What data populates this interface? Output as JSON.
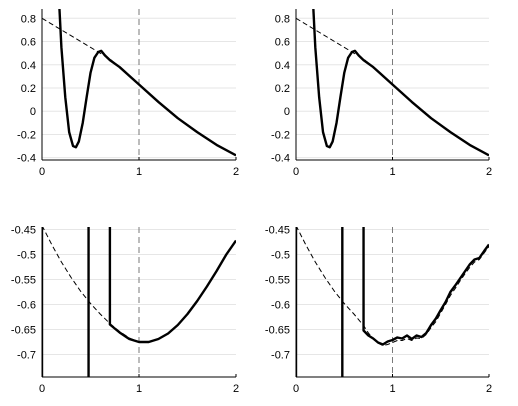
{
  "chart_data": [
    {
      "type": "line",
      "panel": "top-left",
      "xlim": [
        0,
        2
      ],
      "ylim": [
        -0.42,
        0.88
      ],
      "xticks": [
        0,
        1,
        2
      ],
      "xtick_labels": [
        "0",
        "1",
        "2"
      ],
      "yticks": [
        -0.4,
        -0.2,
        0,
        0.2,
        0.4,
        0.6,
        0.8
      ],
      "ytick_labels": [
        "-0.4",
        "-0.2",
        "0",
        "0.2",
        "0.4",
        "0.6",
        "0.8"
      ],
      "grid": "horizontal",
      "vline_x": 1,
      "series": [
        {
          "style": "solid",
          "x": [
            0.18,
            0.2,
            0.24,
            0.28,
            0.32,
            0.35,
            0.38,
            0.42,
            0.46,
            0.5,
            0.54,
            0.58,
            0.61,
            0.65,
            0.7,
            0.8,
            1.0,
            1.2,
            1.4,
            1.6,
            1.8,
            2.0
          ],
          "y": [
            0.88,
            0.55,
            0.12,
            -0.18,
            -0.3,
            -0.31,
            -0.26,
            -0.1,
            0.12,
            0.33,
            0.46,
            0.51,
            0.52,
            0.48,
            0.44,
            0.38,
            0.23,
            0.08,
            -0.06,
            -0.18,
            -0.29,
            -0.38
          ]
        },
        {
          "style": "dashed",
          "x": [
            0,
            0.2,
            0.4,
            0.6,
            0.7,
            0.8,
            1.0,
            1.2,
            1.4,
            1.6,
            1.8,
            2.0
          ],
          "y": [
            0.8,
            0.7,
            0.6,
            0.5,
            0.45,
            0.38,
            0.23,
            0.08,
            -0.06,
            -0.18,
            -0.29,
            -0.38
          ]
        }
      ]
    },
    {
      "type": "line",
      "panel": "top-right",
      "xlim": [
        0,
        2
      ],
      "ylim": [
        -0.42,
        0.88
      ],
      "xticks": [
        0,
        1,
        2
      ],
      "xtick_labels": [
        "0",
        "1",
        "2"
      ],
      "yticks": [
        -0.4,
        -0.2,
        0,
        0.2,
        0.4,
        0.6,
        0.8
      ],
      "ytick_labels": [
        "-0.4",
        "-0.2",
        "0",
        "0.2",
        "0.4",
        "0.6",
        "0.8"
      ],
      "grid": "horizontal",
      "vline_x": 1,
      "series": [
        {
          "style": "solid",
          "x": [
            0.18,
            0.2,
            0.24,
            0.28,
            0.32,
            0.35,
            0.38,
            0.42,
            0.46,
            0.5,
            0.54,
            0.58,
            0.61,
            0.65,
            0.7,
            0.8,
            1.0,
            1.2,
            1.4,
            1.6,
            1.8,
            2.0
          ],
          "y": [
            0.88,
            0.55,
            0.12,
            -0.18,
            -0.3,
            -0.31,
            -0.26,
            -0.1,
            0.12,
            0.33,
            0.46,
            0.51,
            0.52,
            0.48,
            0.44,
            0.38,
            0.23,
            0.08,
            -0.06,
            -0.18,
            -0.29,
            -0.38
          ]
        },
        {
          "style": "dashed",
          "x": [
            0,
            0.2,
            0.4,
            0.6,
            0.7,
            0.8,
            1.0,
            1.2,
            1.4,
            1.6,
            1.8,
            2.0
          ],
          "y": [
            0.8,
            0.7,
            0.6,
            0.5,
            0.45,
            0.38,
            0.23,
            0.08,
            -0.06,
            -0.18,
            -0.29,
            -0.38
          ]
        }
      ]
    },
    {
      "type": "line",
      "panel": "bottom-left",
      "xlim": [
        0,
        2
      ],
      "ylim": [
        -0.745,
        -0.445
      ],
      "xticks": [
        0,
        1,
        2
      ],
      "xtick_labels": [
        "0",
        "1",
        "2"
      ],
      "yticks": [
        -0.7,
        -0.65,
        -0.6,
        -0.55,
        -0.5,
        -0.45
      ],
      "ytick_labels": [
        "-0.7",
        "-0.65",
        "-0.6",
        "-0.55",
        "-0.5",
        "-0.45"
      ],
      "grid": "horizontal",
      "vline_x": 1,
      "series": [
        {
          "style": "solid",
          "x": [
            0.0,
            0.0
          ],
          "y": [
            -0.745,
            -0.445
          ]
        },
        {
          "style": "solid",
          "x": [
            0.48,
            0.48
          ],
          "y": [
            -0.745,
            -0.445
          ]
        },
        {
          "style": "solid",
          "x": [
            0.7,
            0.7,
            0.8,
            0.9,
            1.0,
            1.1,
            1.2,
            1.3,
            1.4,
            1.5,
            1.6,
            1.7,
            1.8,
            1.9,
            2.0
          ],
          "y": [
            -0.445,
            -0.64,
            -0.656,
            -0.669,
            -0.675,
            -0.675,
            -0.669,
            -0.658,
            -0.641,
            -0.619,
            -0.593,
            -0.564,
            -0.533,
            -0.5,
            -0.472
          ]
        },
        {
          "style": "dashed",
          "x": [
            0.0,
            0.1,
            0.2,
            0.3,
            0.4,
            0.5,
            0.6,
            0.7,
            0.8,
            0.9,
            1.0,
            1.1,
            1.2,
            1.3,
            1.4,
            1.5,
            1.6,
            1.7,
            1.8,
            1.9,
            2.0
          ],
          "y": [
            -0.442,
            -0.48,
            -0.515,
            -0.546,
            -0.574,
            -0.598,
            -0.619,
            -0.638,
            -0.654,
            -0.667,
            -0.675,
            -0.675,
            -0.669,
            -0.658,
            -0.641,
            -0.619,
            -0.593,
            -0.564,
            -0.533,
            -0.5,
            -0.472
          ]
        }
      ]
    },
    {
      "type": "line",
      "panel": "bottom-right",
      "xlim": [
        0,
        2
      ],
      "ylim": [
        -0.745,
        -0.445
      ],
      "xticks": [
        0,
        1,
        2
      ],
      "xtick_labels": [
        "0",
        "1",
        "2"
      ],
      "yticks": [
        -0.7,
        -0.65,
        -0.6,
        -0.55,
        -0.5,
        -0.45
      ],
      "ytick_labels": [
        "-0.7",
        "-0.65",
        "-0.6",
        "-0.55",
        "-0.5",
        "-0.45"
      ],
      "grid": "horizontal",
      "vline_x": 1,
      "series": [
        {
          "style": "solid",
          "x": [
            0.0,
            0.0
          ],
          "y": [
            -0.745,
            -0.445
          ]
        },
        {
          "style": "solid",
          "x": [
            0.48,
            0.48
          ],
          "y": [
            -0.745,
            -0.445
          ]
        },
        {
          "style": "solid",
          "x": [
            0.7,
            0.7,
            0.75,
            0.8,
            0.85,
            0.9,
            0.95,
            1.0,
            1.05,
            1.1,
            1.15,
            1.2,
            1.25,
            1.3,
            1.35,
            1.4,
            1.45,
            1.5,
            1.55,
            1.6,
            1.65,
            1.7,
            1.75,
            1.8,
            1.85,
            1.9,
            1.95,
            2.0
          ],
          "y": [
            -0.445,
            -0.652,
            -0.662,
            -0.668,
            -0.676,
            -0.68,
            -0.674,
            -0.671,
            -0.666,
            -0.668,
            -0.662,
            -0.669,
            -0.662,
            -0.665,
            -0.657,
            -0.641,
            -0.628,
            -0.611,
            -0.595,
            -0.575,
            -0.562,
            -0.548,
            -0.534,
            -0.52,
            -0.51,
            -0.507,
            -0.493,
            -0.48
          ]
        },
        {
          "style": "dashed",
          "x": [
            0.0,
            0.1,
            0.2,
            0.3,
            0.4,
            0.5,
            0.6,
            0.7,
            0.75,
            0.8,
            0.85,
            0.9,
            0.95,
            1.0,
            1.05,
            1.1,
            1.15,
            1.2,
            1.25,
            1.3,
            1.35,
            1.4,
            1.45,
            1.5,
            1.55,
            1.6,
            1.65,
            1.7,
            1.75,
            1.8,
            1.85,
            1.9,
            1.95,
            2.0
          ],
          "y": [
            -0.442,
            -0.48,
            -0.515,
            -0.546,
            -0.574,
            -0.598,
            -0.619,
            -0.642,
            -0.657,
            -0.669,
            -0.677,
            -0.682,
            -0.68,
            -0.676,
            -0.672,
            -0.672,
            -0.668,
            -0.672,
            -0.667,
            -0.668,
            -0.66,
            -0.646,
            -0.634,
            -0.617,
            -0.6,
            -0.582,
            -0.568,
            -0.553,
            -0.539,
            -0.526,
            -0.515,
            -0.51,
            -0.497,
            -0.484
          ]
        }
      ]
    }
  ]
}
